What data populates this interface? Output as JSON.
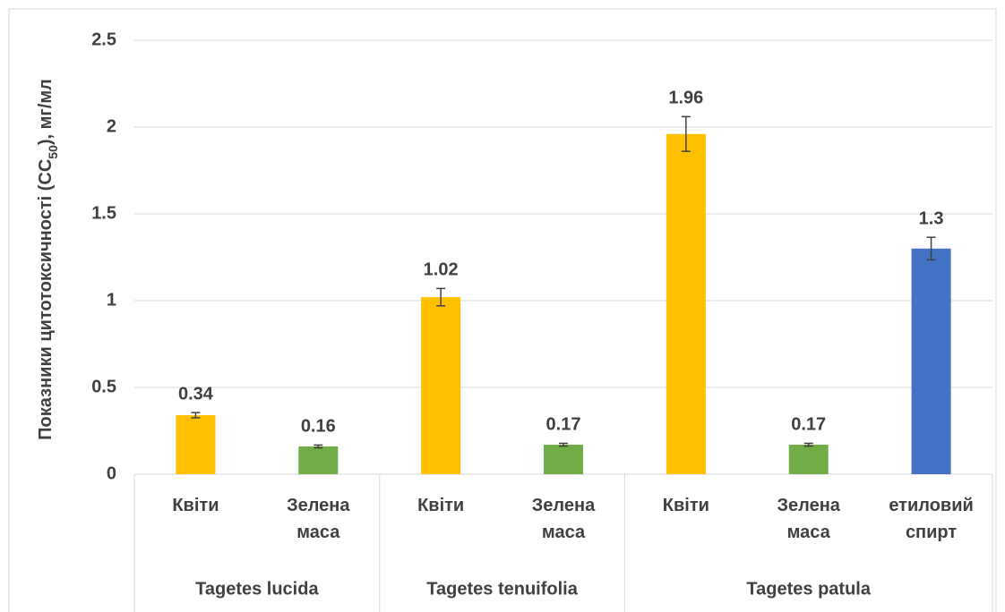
{
  "chart_data": {
    "type": "bar",
    "ylabel": [
      "Показники цитотоксичності (CC",
      "50",
      "), мг/мл"
    ],
    "categories": [
      "Квіти",
      "Зелена маса",
      "Квіти",
      "Зелена маса",
      "Квіти",
      "Зелена маса",
      "етиловий спирт"
    ],
    "groups": [
      {
        "name": "Tagetes lucida",
        "span": 2
      },
      {
        "name": "Tagetes tenuifolia",
        "span": 2
      },
      {
        "name": "Tagetes patula",
        "span": 3
      }
    ],
    "values": [
      0.34,
      0.16,
      1.02,
      0.17,
      1.96,
      0.17,
      1.3
    ],
    "errors": [
      0.015,
      0.008,
      0.05,
      0.008,
      0.1,
      0.008,
      0.065
    ],
    "colors": [
      "#ffc000",
      "#70ad47",
      "#ffc000",
      "#70ad47",
      "#ffc000",
      "#70ad47",
      "#4472c4"
    ],
    "ylim": [
      0,
      2.5
    ],
    "yticks": [
      0,
      0.5,
      1,
      1.5,
      2,
      2.5
    ],
    "grid": true
  }
}
